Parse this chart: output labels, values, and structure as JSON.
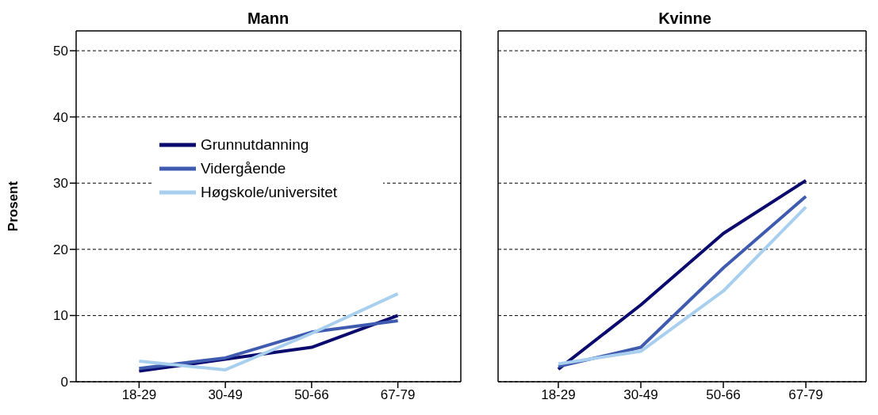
{
  "chart_data": [
    {
      "type": "line",
      "title": "Mann",
      "ylabel": "Prosent",
      "categories": [
        "18-29",
        "30-49",
        "50-66",
        "67-79"
      ],
      "ylim": [
        0,
        53
      ],
      "yticks": [
        0,
        10,
        20,
        30,
        40,
        50
      ],
      "grid": "y",
      "legend": "left",
      "marker": "none",
      "series": [
        {
          "name": "Grunnutdanning",
          "color": "#0a0a6e",
          "values": [
            1.6,
            3.4,
            5.2,
            10.0
          ]
        },
        {
          "name": "Vidergående",
          "color": "#3f5bb0",
          "values": [
            2.0,
            3.6,
            7.5,
            9.2
          ]
        },
        {
          "name": "Høgskole/universitet",
          "color": "#a9cfef",
          "values": [
            3.1,
            1.8,
            7.3,
            13.3
          ]
        }
      ]
    },
    {
      "type": "line",
      "title": "Kvinne",
      "categories": [
        "18-29",
        "30-49",
        "50-66",
        "67-79"
      ],
      "ylim": [
        0,
        53
      ],
      "yticks": [
        0,
        10,
        20,
        30,
        40,
        50
      ],
      "grid": "y",
      "tick_labels": "x",
      "legend": false,
      "marker": "none",
      "series": [
        {
          "color": "#0a0a6e",
          "values": [
            1.9,
            11.6,
            22.4,
            30.4
          ]
        },
        {
          "color": "#3f5bb0",
          "values": [
            2.3,
            5.2,
            17.2,
            28.0
          ]
        },
        {
          "color": "#a9cfef",
          "values": [
            2.7,
            4.6,
            13.7,
            26.4
          ]
        }
      ]
    }
  ]
}
